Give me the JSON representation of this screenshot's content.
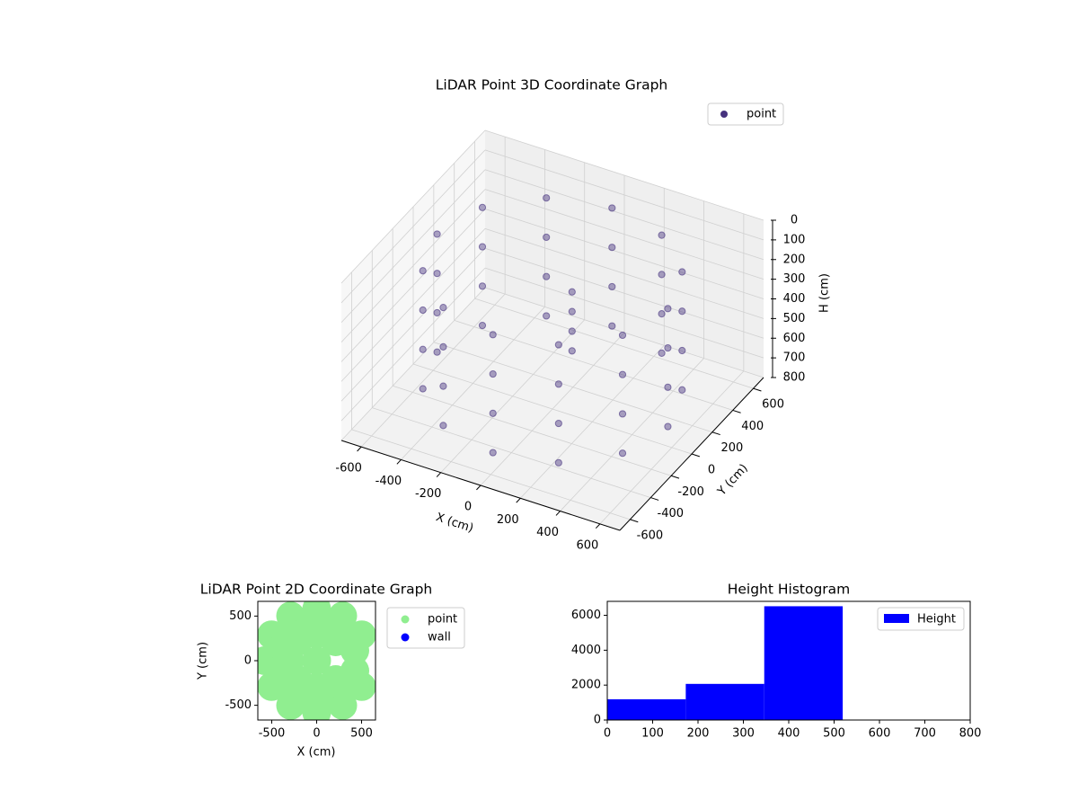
{
  "chart_data": [
    {
      "type": "scatter3d",
      "title": "LiDAR Point 3D Coordinate Graph",
      "xlabel": "X (cm)",
      "ylabel": "Y (cm)",
      "zlabel": "H (cm)",
      "xlim": [
        -700,
        700
      ],
      "ylim": [
        -700,
        700
      ],
      "zlim": [
        0,
        800
      ],
      "xticks": [
        -600,
        -400,
        -200,
        0,
        200,
        400,
        600
      ],
      "yticks": [
        -600,
        -400,
        -200,
        0,
        200,
        400,
        600
      ],
      "zticks": [
        0,
        100,
        200,
        300,
        400,
        500,
        600,
        700,
        800
      ],
      "grid": true,
      "legend": "upper right",
      "series": [
        {
          "name": "point",
          "color": "#46327e",
          "x": [
            580,
            502,
            290,
            0,
            -290,
            -502,
            -580,
            -502,
            -290,
            0,
            290,
            502,
            580,
            502,
            290,
            0,
            -290,
            -502,
            -580,
            -502,
            -290,
            0,
            290,
            502,
            580,
            502,
            290,
            0,
            -290,
            -502,
            -580,
            -502,
            -290,
            0,
            290,
            502,
            580,
            502,
            290,
            0,
            -290,
            -502,
            -580,
            -502,
            -290,
            0,
            290,
            502,
            150,
            150,
            150,
            150
          ],
          "y": [
            0,
            290,
            502,
            580,
            502,
            290,
            0,
            -290,
            -502,
            -580,
            -502,
            -290,
            0,
            290,
            502,
            580,
            502,
            290,
            0,
            -290,
            -502,
            -580,
            -502,
            -290,
            0,
            290,
            502,
            580,
            502,
            290,
            0,
            -290,
            -502,
            -580,
            -502,
            -290,
            0,
            290,
            502,
            580,
            502,
            290,
            0,
            -290,
            -502,
            -580,
            -502,
            -290,
            -100,
            -100,
            -100,
            -100
          ],
          "z": [
            100,
            100,
            100,
            100,
            100,
            100,
            100,
            100,
            100,
            100,
            100,
            100,
            300,
            300,
            300,
            300,
            300,
            300,
            300,
            300,
            300,
            300,
            300,
            300,
            500,
            500,
            500,
            500,
            500,
            500,
            500,
            500,
            500,
            500,
            500,
            500,
            700,
            700,
            700,
            700,
            700,
            700,
            700,
            700,
            700,
            700,
            700,
            700,
            100,
            200,
            300,
            400
          ]
        }
      ]
    },
    {
      "type": "scatter",
      "title": "LiDAR Point 2D Coordinate Graph",
      "xlabel": "X (cm)",
      "ylabel": "Y (cm)",
      "xlim": [
        -655,
        655
      ],
      "ylim": [
        -665,
        665
      ],
      "xticks": [
        -500,
        0,
        500
      ],
      "yticks": [
        -500,
        0,
        500
      ],
      "legend": "outside upper right",
      "series": [
        {
          "name": "point",
          "color": "#90ee90",
          "x": [
            502,
            290,
            0,
            -290,
            -502,
            -580,
            -502,
            -290,
            0,
            290,
            502,
            425,
            311,
            114,
            -114,
            -311,
            -425,
            -425,
            -311,
            -114,
            114,
            311,
            425,
            212,
            0,
            -212,
            -300,
            -212,
            0,
            212,
            0
          ],
          "y": [
            290,
            502,
            580,
            502,
            290,
            0,
            -290,
            -502,
            -580,
            -502,
            -290,
            114,
            311,
            425,
            425,
            311,
            114,
            -114,
            -311,
            -425,
            -425,
            -311,
            -114,
            212,
            300,
            212,
            0,
            -212,
            -300,
            -212,
            0
          ]
        },
        {
          "name": "wall",
          "color": "#0000ff",
          "x": [],
          "y": []
        }
      ]
    },
    {
      "type": "histogram",
      "title": "Height Histogram",
      "name": "Height",
      "color": "#0000ff",
      "bins": [
        0,
        173,
        346,
        519
      ],
      "values": [
        1190,
        2070,
        6520
      ],
      "xlim": [
        0,
        800
      ],
      "ylim": [
        0,
        6800
      ],
      "xticks": [
        0,
        100,
        200,
        300,
        400,
        500,
        600,
        700,
        800
      ],
      "yticks": [
        0,
        2000,
        4000,
        6000
      ],
      "legend": "upper right"
    }
  ]
}
